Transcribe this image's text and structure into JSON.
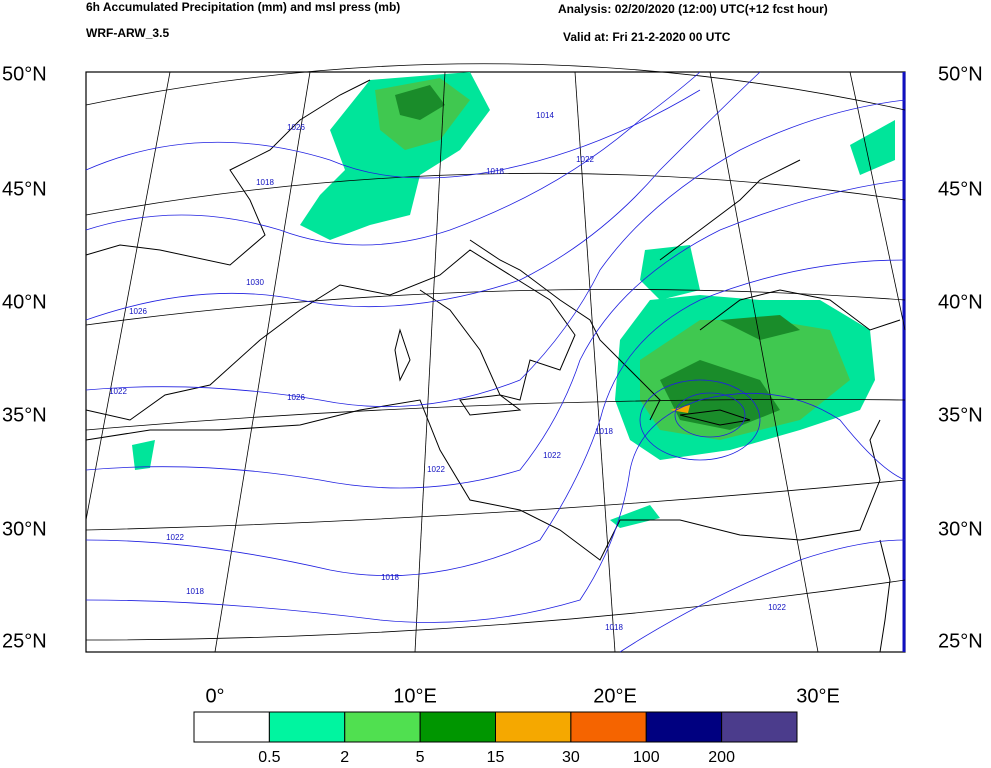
{
  "header": {
    "title": "6h Accumulated Precipitation (mm) and msl press (mb)",
    "model": "WRF-ARW_3.5",
    "analysis": "Analysis: 02/20/2020 (12:00) UTC(+12 fcst hour)",
    "valid": "Valid at: Fri 21-2-2020 00 UTC"
  },
  "map": {
    "lat_labels": [
      "50°N",
      "45°N",
      "40°N",
      "35°N",
      "30°N",
      "25°N"
    ],
    "lon_labels": [
      "0°",
      "10°E",
      "20°E",
      "30°E"
    ],
    "isobar_labels": [
      "1026",
      "1014",
      "1022",
      "1018",
      "1018",
      "1030",
      "1026",
      "1022",
      "1026",
      "1022",
      "1022",
      "1018",
      "1022",
      "1018",
      "1018",
      "1022",
      "1018"
    ]
  },
  "colorbar": {
    "colors": [
      "#ffffff",
      "#00f5a0",
      "#50e050",
      "#009600",
      "#f5a800",
      "#f56400",
      "#000080",
      "#4b3c8c"
    ],
    "bounds": [
      "0.5",
      "2",
      "5",
      "15",
      "30",
      "100",
      "200"
    ]
  }
}
